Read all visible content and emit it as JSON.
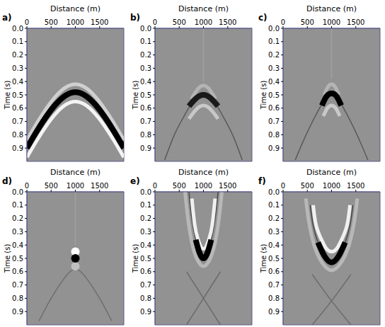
{
  "chart_data": [
    {
      "type": "line",
      "title": "a)",
      "x_label": "Distance (m)",
      "y_label": "Time (s)",
      "xlim": [
        0,
        2000
      ],
      "xticks": [
        0,
        500,
        1000,
        1500
      ],
      "ylim": [
        1,
        0
      ],
      "yticks": [
        {
          "value": 0,
          "label": "0.0"
        },
        0.1,
        0.2,
        0.3,
        0.4,
        0.5,
        0.6,
        0.7,
        0.8,
        0.9
      ],
      "tick_labels": true,
      "series": [
        {
          "color": "#d0d0d0",
          "line_style": "medium",
          "x": [
            0,
            200,
            400,
            600,
            800,
            1000,
            1200,
            1400,
            1600,
            1800,
            2000
          ],
          "values": [
            0.84,
            0.716,
            0.603,
            0.509,
            0.444,
            0.42,
            0.444,
            0.509,
            0.603,
            0.716,
            0.84
          ]
        },
        {
          "color": "#f4f4f4",
          "line_style": "medium",
          "x": [
            0,
            200,
            400,
            600,
            800,
            1000,
            1200,
            1400,
            1600,
            1800,
            2000
          ],
          "values": [
            0.97,
            0.846,
            0.733,
            0.639,
            0.574,
            0.55,
            0.574,
            0.639,
            0.733,
            0.846,
            0.97
          ]
        },
        {
          "color": "#000000",
          "line_style": "thick",
          "x": [
            0,
            200,
            400,
            600,
            800,
            1000,
            1200,
            1400,
            1600,
            1800,
            2000
          ],
          "values": [
            0.9,
            0.776,
            0.663,
            0.569,
            0.504,
            0.48,
            0.504,
            0.569,
            0.663,
            0.776,
            0.9
          ]
        }
      ]
    },
    {
      "type": "line",
      "title": "b)",
      "x_label": "Distance (m)",
      "y_label": "Time (s)",
      "xlim": [
        0,
        2000
      ],
      "xticks": [
        0,
        500,
        1000,
        1500
      ],
      "ylim": [
        1,
        0
      ],
      "yticks": [
        {
          "value": 0,
          "label": "0.0"
        },
        0.1,
        0.2,
        0.3,
        0.4,
        0.5,
        0.6,
        0.7,
        0.8,
        0.9
      ],
      "tick_labels": true,
      "series": [
        {
          "color": "#5a5a5a",
          "line_style": "thin",
          "x": [
            200,
            400,
            600,
            800,
            1000,
            1200,
            1400,
            1600,
            1800
          ],
          "values": [
            0.99,
            0.8,
            0.66,
            0.54,
            0.5,
            0.54,
            0.66,
            0.8,
            0.99
          ]
        },
        {
          "color": "#a0a0a0",
          "line_style": "thin",
          "x": [
            1000,
            1000
          ],
          "values": [
            0,
            0.4
          ]
        },
        {
          "color": "#b4b4b4",
          "line_style": "medium",
          "x": [
            750,
            875,
            1000,
            1125,
            1250
          ],
          "values": [
            0.53,
            0.46,
            0.43,
            0.46,
            0.53
          ]
        },
        {
          "color": "#c8c8c8",
          "line_style": "medium",
          "x": [
            700,
            850,
            1000,
            1150,
            1300
          ],
          "values": [
            0.68,
            0.61,
            0.58,
            0.61,
            0.68
          ]
        },
        {
          "color": "#1a1a1a",
          "line_style": "thick",
          "x": [
            700,
            850,
            1000,
            1150,
            1300
          ],
          "values": [
            0.585,
            0.525,
            0.5,
            0.525,
            0.585
          ]
        }
      ]
    },
    {
      "type": "line",
      "title": "c)",
      "x_label": "Distance (m)",
      "y_label": "Time (s)",
      "xlim": [
        0,
        2000
      ],
      "xticks": [
        0,
        500,
        1000,
        1500
      ],
      "ylim": [
        1,
        0
      ],
      "yticks": [
        {
          "value": 0,
          "label": "0.0"
        },
        0.1,
        0.2,
        0.3,
        0.4,
        0.5,
        0.6,
        0.7,
        0.8,
        0.9
      ],
      "tick_labels": true,
      "series": [
        {
          "color": "#5a5a5a",
          "line_style": "thin",
          "x": [
            250,
            450,
            650,
            850,
            1000,
            1150,
            1350,
            1550,
            1750
          ],
          "values": [
            0.99,
            0.82,
            0.67,
            0.54,
            0.49,
            0.54,
            0.67,
            0.82,
            0.99
          ]
        },
        {
          "color": "#a0a0a0",
          "line_style": "thin",
          "x": [
            1000,
            1000
          ],
          "values": [
            0,
            0.38
          ]
        },
        {
          "color": "#b4b4b4",
          "line_style": "medium",
          "x": [
            850,
            925,
            1000,
            1075,
            1150
          ],
          "values": [
            0.5,
            0.44,
            0.42,
            0.44,
            0.5
          ]
        },
        {
          "color": "#c8c8c8",
          "line_style": "medium",
          "x": [
            830,
            915,
            1000,
            1085,
            1170
          ],
          "values": [
            0.66,
            0.6,
            0.58,
            0.6,
            0.66
          ]
        },
        {
          "color": "#000000",
          "line_style": "thick",
          "x": [
            800,
            900,
            1000,
            1100,
            1200
          ],
          "values": [
            0.58,
            0.51,
            0.49,
            0.51,
            0.58
          ]
        }
      ]
    },
    {
      "type": "line",
      "title": "d)",
      "x_label": "Distance (m)",
      "y_label": "Time (s)",
      "xlim": [
        0,
        2000
      ],
      "xticks": [
        0,
        500,
        1000,
        1500
      ],
      "ylim": [
        1,
        0
      ],
      "yticks": [
        {
          "value": 0,
          "label": "0.0"
        },
        0.1,
        0.2,
        0.3,
        0.4,
        0.5,
        0.6,
        0.7,
        0.8,
        0.9
      ],
      "tick_labels": true,
      "series": [
        {
          "color": "#6e6e6e",
          "line_style": "thin",
          "x": [
            250,
            500,
            750,
            1000,
            1250,
            1500,
            1750
          ],
          "values": [
            0.97,
            0.8,
            0.66,
            0.58,
            0.66,
            0.8,
            0.97
          ]
        },
        {
          "color": "#a0a0a0",
          "line_style": "thin",
          "x": [
            1000,
            1000
          ],
          "values": [
            0,
            0.4
          ]
        },
        {
          "type": "scatter",
          "marker": "circle",
          "color": "#ffffff",
          "x": [
            1000
          ],
          "values": [
            0.45
          ]
        },
        {
          "type": "scatter",
          "marker": "circle",
          "color": "#c0c0c0",
          "x": [
            1000
          ],
          "values": [
            0.56
          ]
        },
        {
          "type": "scatter",
          "marker": "circle",
          "color": "#000000",
          "x": [
            1000
          ],
          "values": [
            0.5
          ]
        }
      ]
    },
    {
      "type": "line",
      "title": "e)",
      "x_label": "Distance (m)",
      "y_label": "Time (s)",
      "xlim": [
        0,
        2000
      ],
      "xticks": [
        0,
        500,
        1000,
        1500
      ],
      "ylim": [
        1,
        0
      ],
      "yticks": [
        {
          "value": 0,
          "label": "0.0"
        },
        0.1,
        0.2,
        0.3,
        0.4,
        0.5,
        0.6,
        0.7,
        0.8,
        0.9
      ],
      "tick_labels": true,
      "series": [
        {
          "color": "#6a6a6a",
          "line_style": "thin",
          "x": [
            650,
            1000,
            1350
          ],
          "values": [
            0.6,
            0.8,
            1.0
          ]
        },
        {
          "color": "#6a6a6a",
          "line_style": "thin",
          "x": [
            650,
            1000,
            1350
          ],
          "values": [
            1.0,
            0.8,
            0.6
          ]
        },
        {
          "color": "#b8b8b8",
          "line_style": "medium",
          "x": [
            620,
            680,
            760,
            860,
            1000,
            1140,
            1240,
            1320,
            1380
          ],
          "values": [
            0,
            0.2,
            0.38,
            0.5,
            0.56,
            0.5,
            0.38,
            0.2,
            0
          ]
        },
        {
          "color": "#4a4a4a",
          "line_style": "thin",
          "x": [
            700,
            760,
            840,
            920,
            1000,
            1080,
            1160,
            1240,
            1300
          ],
          "values": [
            0,
            0.2,
            0.36,
            0.46,
            0.5,
            0.46,
            0.36,
            0.2,
            0
          ]
        },
        {
          "color": "#f0f0f0",
          "line_style": "medium",
          "x": [
            760,
            820,
            890,
            1000,
            1110,
            1180,
            1240
          ],
          "values": [
            0.05,
            0.25,
            0.36,
            0.43,
            0.36,
            0.25,
            0.05
          ]
        },
        {
          "color": "#000000",
          "line_style": "thick",
          "x": [
            840,
            920,
            1000,
            1080,
            1160
          ],
          "values": [
            0.36,
            0.46,
            0.5,
            0.46,
            0.36
          ]
        }
      ]
    },
    {
      "type": "line",
      "title": "f)",
      "x_label": "Distance (m)",
      "y_label": "Time (s)",
      "xlim": [
        0,
        2000
      ],
      "xticks": [
        0,
        500,
        1000,
        1500
      ],
      "ylim": [
        1,
        0
      ],
      "yticks": [
        {
          "value": 0,
          "label": "0.0"
        },
        0.1,
        0.2,
        0.3,
        0.4,
        0.5,
        0.6,
        0.7,
        0.8,
        0.9
      ],
      "tick_labels": true,
      "series": [
        {
          "color": "#6a6a6a",
          "line_style": "thin",
          "x": [
            600,
            1000,
            1400
          ],
          "values": [
            0.62,
            0.82,
            1.0
          ]
        },
        {
          "color": "#6a6a6a",
          "line_style": "thin",
          "x": [
            600,
            1000,
            1400
          ],
          "values": [
            1.0,
            0.82,
            0.62
          ]
        },
        {
          "color": "#b8b8b8",
          "line_style": "medium",
          "x": [
            470,
            530,
            640,
            800,
            1000,
            1200,
            1360,
            1470,
            1530
          ],
          "values": [
            0.05,
            0.22,
            0.4,
            0.53,
            0.59,
            0.53,
            0.4,
            0.22,
            0.05
          ]
        },
        {
          "color": "#4a4a4a",
          "line_style": "thin",
          "x": [
            560,
            620,
            720,
            850,
            1000,
            1150,
            1280,
            1380,
            1440
          ],
          "values": [
            0.1,
            0.25,
            0.38,
            0.48,
            0.53,
            0.48,
            0.38,
            0.25,
            0.1
          ]
        },
        {
          "color": "#f0f0f0",
          "line_style": "medium",
          "x": [
            620,
            680,
            780,
            880,
            1000,
            1120,
            1220,
            1320,
            1380
          ],
          "values": [
            0.1,
            0.25,
            0.35,
            0.42,
            0.45,
            0.42,
            0.35,
            0.25,
            0.1
          ]
        },
        {
          "color": "#000000",
          "line_style": "thick",
          "x": [
            720,
            850,
            1000,
            1150,
            1280
          ],
          "values": [
            0.38,
            0.48,
            0.53,
            0.48,
            0.38
          ]
        }
      ]
    }
  ]
}
